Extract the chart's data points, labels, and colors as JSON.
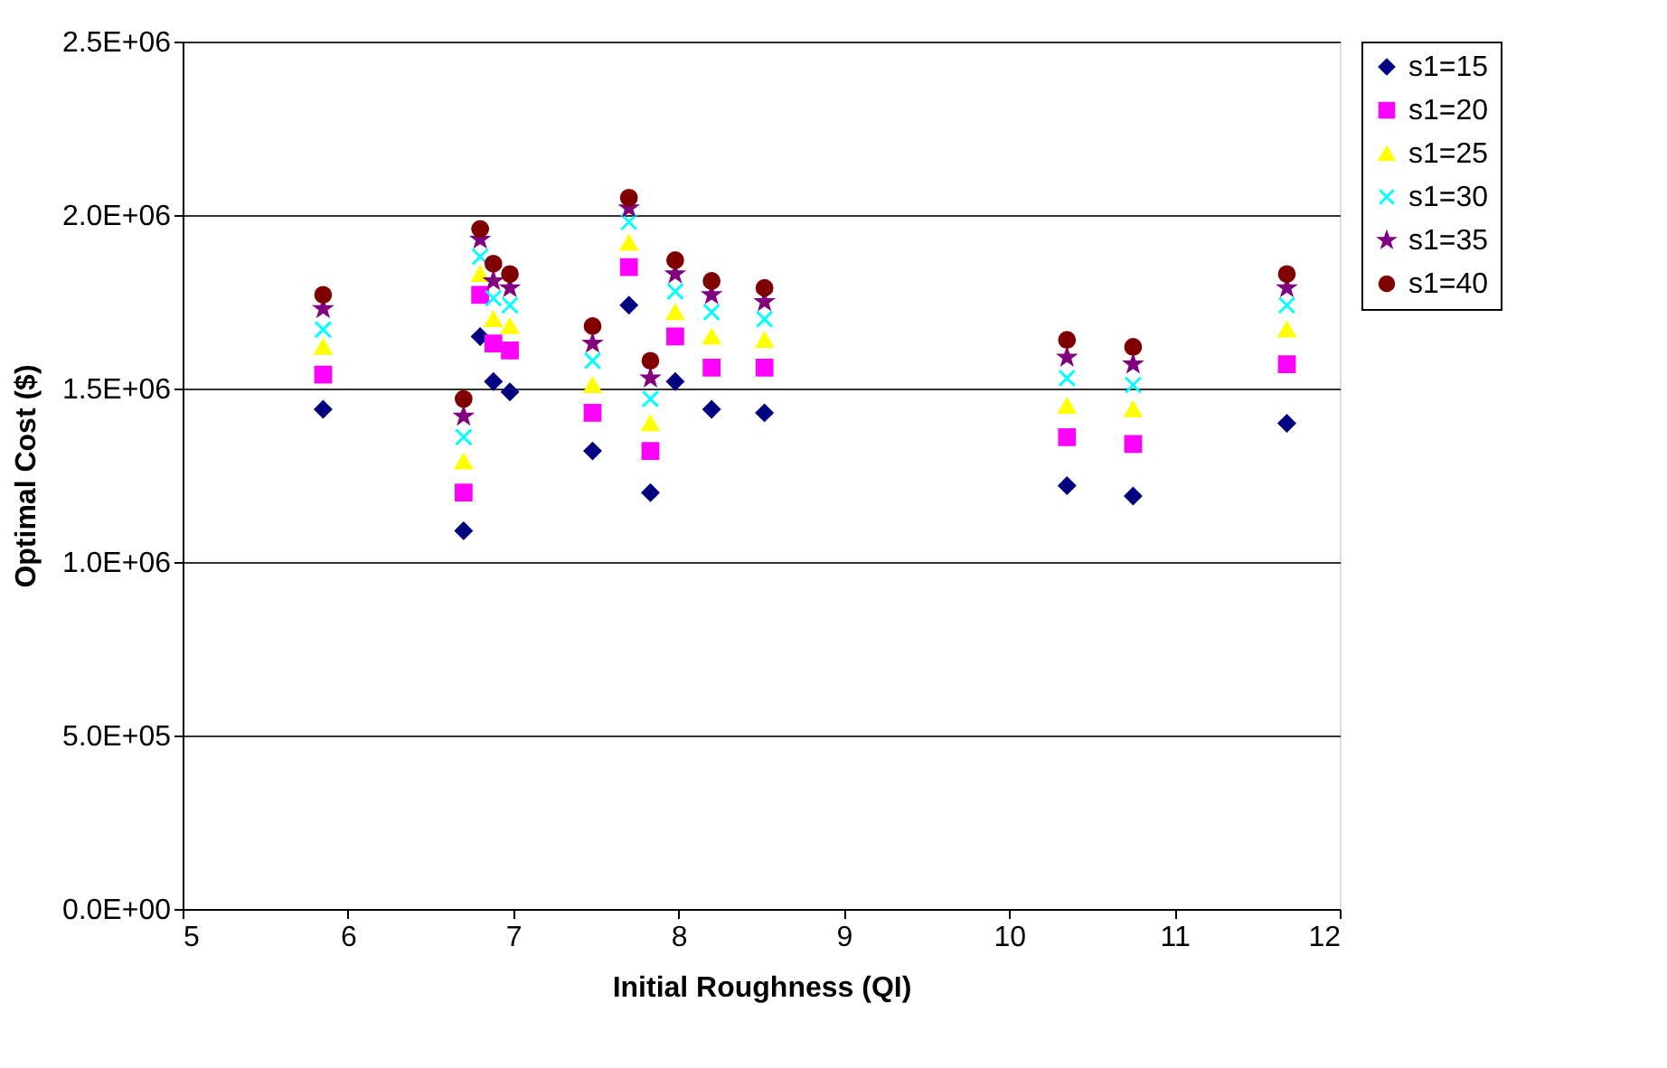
{
  "chart_data": {
    "type": "scatter",
    "xlabel": "Initial Roughness (QI)",
    "ylabel": "Optimal Cost ($)",
    "x": [
      5.85,
      6.7,
      6.8,
      6.88,
      6.98,
      7.48,
      7.7,
      7.83,
      7.98,
      8.2,
      8.52,
      10.35,
      10.75,
      11.68
    ],
    "series": [
      {
        "name": "s1=15",
        "color": "#000080",
        "marker": "diamond",
        "values": [
          1440000,
          1090000,
          1650000,
          1520000,
          1490000,
          1320000,
          1740000,
          1200000,
          1520000,
          1440000,
          1430000,
          1220000,
          1190000,
          1400000
        ]
      },
      {
        "name": "s1=20",
        "color": "#ff00ff",
        "marker": "square",
        "values": [
          1540000,
          1200000,
          1770000,
          1630000,
          1610000,
          1430000,
          1850000,
          1320000,
          1650000,
          1560000,
          1560000,
          1360000,
          1340000,
          1570000
        ]
      },
      {
        "name": "s1=25",
        "color": "#ffff00",
        "marker": "triangle",
        "values": [
          1620000,
          1290000,
          1830000,
          1700000,
          1680000,
          1510000,
          1920000,
          1400000,
          1720000,
          1650000,
          1640000,
          1450000,
          1440000,
          1670000
        ]
      },
      {
        "name": "s1=30",
        "color": "#00ffff",
        "marker": "cross",
        "values": [
          1670000,
          1360000,
          1880000,
          1760000,
          1740000,
          1580000,
          1980000,
          1470000,
          1780000,
          1720000,
          1700000,
          1530000,
          1510000,
          1740000
        ]
      },
      {
        "name": "s1=35",
        "color": "#800080",
        "marker": "star",
        "values": [
          1730000,
          1420000,
          1930000,
          1810000,
          1790000,
          1630000,
          2020000,
          1530000,
          1830000,
          1770000,
          1750000,
          1590000,
          1570000,
          1790000
        ]
      },
      {
        "name": "s1=40",
        "color": "#800000",
        "marker": "circle",
        "values": [
          1770000,
          1470000,
          1960000,
          1860000,
          1830000,
          1680000,
          2050000,
          1580000,
          1870000,
          1810000,
          1790000,
          1640000,
          1620000,
          1830000
        ]
      }
    ],
    "xlim": [
      5,
      12
    ],
    "xticks": [
      5,
      6,
      7,
      8,
      9,
      10,
      11,
      12
    ],
    "ylim": [
      0,
      2500000
    ],
    "yticks": [
      {
        "value": 0,
        "label": "0.0E+00"
      },
      {
        "value": 500000,
        "label": "5.0E+05"
      },
      {
        "value": 1000000,
        "label": "1.0E+06"
      },
      {
        "value": 1500000,
        "label": "1.5E+06"
      },
      {
        "value": 2000000,
        "label": "2.0E+06"
      },
      {
        "value": 2500000,
        "label": "2.5E+06"
      }
    ],
    "grid": "y",
    "legend": "right"
  }
}
